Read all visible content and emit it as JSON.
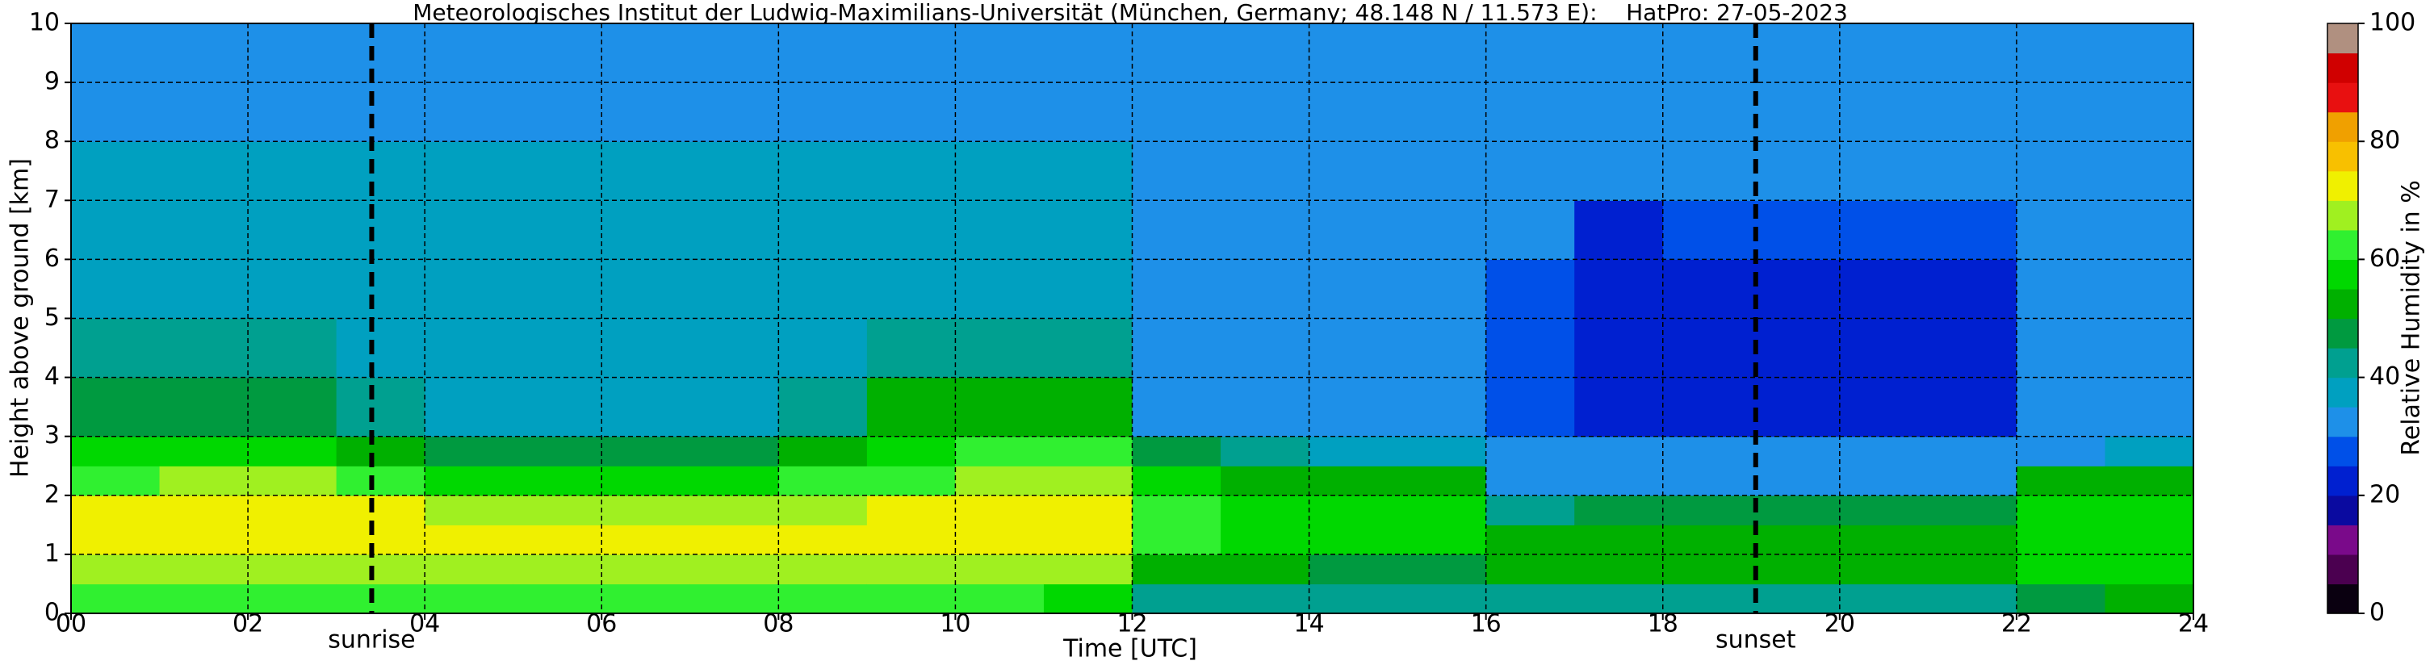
{
  "chart_data": {
    "type": "heatmap",
    "title": "Meteorologisches Institut der Ludwig-Maximilians-Universität (München, Germany; 48.148 N / 11.573 E):    HatPro: 27-05-2023",
    "x_label": "Time [UTC]",
    "y_label": "Height above ground [km]",
    "colorbar_label": "Relative Humidity in %",
    "x": [
      0,
      1,
      2,
      3,
      4,
      5,
      6,
      7,
      8,
      9,
      10,
      11,
      12,
      13,
      14,
      15,
      16,
      17,
      18,
      19,
      20,
      21,
      22,
      23,
      24
    ],
    "y": [
      0,
      0.5,
      1,
      1.5,
      2,
      2.5,
      3,
      4,
      5,
      6,
      7,
      8,
      9,
      10
    ],
    "z": [
      [
        60,
        68,
        70,
        70,
        64,
        57,
        48,
        40,
        38,
        37,
        36,
        33,
        30
      ],
      [
        60,
        68,
        70,
        70,
        65,
        58,
        47,
        40,
        38,
        37,
        36,
        33,
        30
      ],
      [
        62,
        68,
        72,
        70,
        65,
        58,
        47,
        40,
        38,
        37,
        36,
        33,
        30
      ],
      [
        64,
        68,
        72,
        70,
        62,
        52,
        44,
        39,
        38,
        37,
        36,
        33,
        30
      ],
      [
        64,
        68,
        72,
        68,
        58,
        46,
        38,
        37,
        37,
        36,
        35,
        33,
        30
      ],
      [
        64,
        68,
        72,
        68,
        58,
        46,
        38,
        37,
        37,
        36,
        35,
        33,
        30
      ],
      [
        62,
        68,
        72,
        68,
        58,
        47,
        38,
        37,
        37,
        36,
        35,
        33,
        30
      ],
      [
        62,
        68,
        70,
        68,
        58,
        48,
        38,
        37,
        37,
        36,
        35,
        33,
        30
      ],
      [
        60,
        68,
        70,
        68,
        60,
        53,
        44,
        38,
        37,
        36,
        35,
        33,
        30
      ],
      [
        60,
        68,
        70,
        70,
        64,
        58,
        50,
        40,
        38,
        37,
        36,
        33,
        30
      ],
      [
        60,
        68,
        70,
        70,
        65,
        60,
        53,
        42,
        38,
        37,
        36,
        33,
        30
      ],
      [
        58,
        66,
        70,
        70,
        66,
        60,
        52,
        40,
        38,
        37,
        36,
        33,
        30
      ],
      [
        44,
        52,
        60,
        60,
        55,
        45,
        34,
        33,
        33,
        33,
        33,
        32,
        30
      ],
      [
        42,
        50,
        58,
        58,
        52,
        40,
        33,
        33,
        33,
        33,
        33,
        32,
        30
      ],
      [
        40,
        48,
        56,
        56,
        52,
        36,
        33,
        33,
        33,
        33,
        33,
        32,
        30
      ],
      [
        40,
        46,
        55,
        55,
        50,
        35,
        33,
        33,
        33,
        33,
        33,
        32,
        30
      ],
      [
        40,
        52,
        52,
        44,
        33,
        31,
        28,
        27,
        28,
        30,
        32,
        31,
        30
      ],
      [
        40,
        52,
        52,
        45,
        33,
        30,
        22,
        22,
        22,
        24,
        30,
        31,
        30
      ],
      [
        40,
        52,
        52,
        45,
        33,
        30,
        21,
        20,
        21,
        25,
        30,
        31,
        30
      ],
      [
        40,
        52,
        52,
        45,
        33,
        30,
        22,
        21,
        22,
        25,
        30,
        31,
        30
      ],
      [
        40,
        52,
        52,
        45,
        33,
        30,
        22,
        21,
        22,
        25,
        30,
        31,
        30
      ],
      [
        40,
        52,
        52,
        45,
        33,
        30,
        21,
        21,
        22,
        25,
        30,
        31,
        30
      ],
      [
        46,
        55,
        58,
        56,
        50,
        34,
        32,
        32,
        33,
        33,
        32,
        31,
        30
      ],
      [
        52,
        56,
        58,
        58,
        54,
        36,
        33,
        33,
        33,
        33,
        32,
        31,
        30
      ]
    ],
    "xlim": [
      0,
      24
    ],
    "ylim": [
      0,
      10
    ],
    "xticks": [
      {
        "value": 0,
        "label": "00"
      },
      {
        "value": 2,
        "label": "02"
      },
      {
        "value": 4,
        "label": "04"
      },
      {
        "value": 6,
        "label": "06"
      },
      {
        "value": 8,
        "label": "08"
      },
      {
        "value": 10,
        "label": "10"
      },
      {
        "value": 12,
        "label": "12"
      },
      {
        "value": 14,
        "label": "14"
      },
      {
        "value": 16,
        "label": "16"
      },
      {
        "value": 18,
        "label": "18"
      },
      {
        "value": 20,
        "label": "20"
      },
      {
        "value": 22,
        "label": "22"
      },
      {
        "value": 24,
        "label": "24"
      }
    ],
    "yticks": [
      0,
      1,
      2,
      3,
      4,
      5,
      6,
      7,
      8,
      9,
      10
    ],
    "grid": true,
    "clim": [
      0,
      100
    ],
    "cticks": [
      0,
      20,
      40,
      60,
      80,
      100
    ],
    "colormap": [
      "#0a0010",
      "#4b0050",
      "#7a0a8a",
      "#0a0aa0",
      "#0020d0",
      "#0050e8",
      "#1e90e8",
      "#00a0c0",
      "#00a090",
      "#009a40",
      "#00b000",
      "#00d800",
      "#30f030",
      "#a0f020",
      "#f0f000",
      "#f8c000",
      "#f0a000",
      "#e81010",
      "#d00000",
      "#b09080"
    ],
    "annotations": [
      {
        "text": "sunrise",
        "x": 3.4
      },
      {
        "text": "sunset",
        "x": 19.05
      }
    ]
  }
}
